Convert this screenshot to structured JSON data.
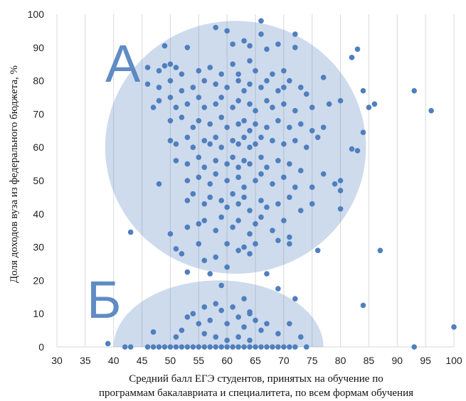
{
  "chart_data": {
    "type": "scatter",
    "title": "",
    "xlabel_lines": [
      "Средний балл ЕГЭ студентов, принятых на обучение по",
      "программам бакалавриата и специалитета, по всем формам обучения"
    ],
    "ylabel": "Доля доходов вуза из федерального бюджета, %",
    "xlim": [
      30,
      100
    ],
    "ylim": [
      0,
      100
    ],
    "x_ticks": [
      30,
      35,
      40,
      45,
      50,
      55,
      60,
      65,
      70,
      75,
      80,
      85,
      90,
      95,
      100
    ],
    "y_ticks": [
      0,
      10,
      20,
      30,
      40,
      50,
      60,
      70,
      80,
      90,
      100
    ],
    "grid": "vertical",
    "series_color": "#4f7fbe",
    "clusters": [
      {
        "label": "А",
        "center": [
          61.5,
          60
        ],
        "radius": [
          23,
          38
        ]
      },
      {
        "label": "Б",
        "center": [
          58.5,
          0
        ],
        "radius": [
          18.5,
          20
        ]
      }
    ],
    "points": [
      [
        49,
        90.5
      ],
      [
        53,
        90
      ],
      [
        58,
        96
      ],
      [
        60,
        95
      ],
      [
        61,
        91
      ],
      [
        63,
        92
      ],
      [
        64,
        90.5
      ],
      [
        66,
        98
      ],
      [
        66,
        94
      ],
      [
        67,
        89.5
      ],
      [
        69,
        91
      ],
      [
        72,
        94
      ],
      [
        72,
        90
      ],
      [
        82,
        87
      ],
      [
        83,
        89.5
      ],
      [
        46,
        84
      ],
      [
        48,
        83
      ],
      [
        49,
        84.5
      ],
      [
        50,
        85
      ],
      [
        51,
        84
      ],
      [
        52,
        82
      ],
      [
        55,
        83
      ],
      [
        57,
        84
      ],
      [
        59,
        82
      ],
      [
        61,
        85
      ],
      [
        62,
        82
      ],
      [
        64,
        86
      ],
      [
        65,
        83
      ],
      [
        68,
        82
      ],
      [
        70,
        83
      ],
      [
        77,
        81
      ],
      [
        46,
        79
      ],
      [
        48,
        78
      ],
      [
        50,
        80
      ],
      [
        52,
        77
      ],
      [
        54,
        78
      ],
      [
        56,
        80
      ],
      [
        58,
        79
      ],
      [
        60,
        78
      ],
      [
        62,
        80
      ],
      [
        63,
        77
      ],
      [
        64,
        79
      ],
      [
        66,
        78
      ],
      [
        67,
        80
      ],
      [
        69,
        77
      ],
      [
        70,
        78
      ],
      [
        71,
        80
      ],
      [
        73,
        78
      ],
      [
        74,
        76
      ],
      [
        84,
        77
      ],
      [
        93,
        77
      ],
      [
        47,
        72
      ],
      [
        48,
        74
      ],
      [
        50,
        75
      ],
      [
        51,
        72
      ],
      [
        53,
        73
      ],
      [
        55,
        75
      ],
      [
        56,
        72
      ],
      [
        58,
        73
      ],
      [
        59,
        75
      ],
      [
        61,
        72
      ],
      [
        62,
        74
      ],
      [
        64,
        73
      ],
      [
        65,
        71
      ],
      [
        67,
        74
      ],
      [
        68,
        72
      ],
      [
        70,
        73
      ],
      [
        72,
        71
      ],
      [
        75,
        72
      ],
      [
        78,
        73
      ],
      [
        80,
        74
      ],
      [
        85,
        72
      ],
      [
        86,
        73
      ],
      [
        96,
        71
      ],
      [
        50,
        68
      ],
      [
        52,
        69
      ],
      [
        54,
        66
      ],
      [
        55,
        68
      ],
      [
        57,
        67
      ],
      [
        59,
        69
      ],
      [
        60,
        66
      ],
      [
        62,
        67
      ],
      [
        63,
        68
      ],
      [
        64,
        65
      ],
      [
        65,
        67
      ],
      [
        67,
        66
      ],
      [
        69,
        68
      ],
      [
        71,
        66
      ],
      [
        73,
        67
      ],
      [
        75,
        65
      ],
      [
        77,
        66
      ],
      [
        84,
        64.5
      ],
      [
        50,
        62
      ],
      [
        51,
        61
      ],
      [
        53,
        63
      ],
      [
        54,
        60
      ],
      [
        56,
        62
      ],
      [
        57,
        61
      ],
      [
        58,
        63
      ],
      [
        59,
        60
      ],
      [
        61,
        62
      ],
      [
        62,
        61
      ],
      [
        63,
        63
      ],
      [
        64,
        60
      ],
      [
        65,
        61
      ],
      [
        66,
        63
      ],
      [
        68,
        62
      ],
      [
        70,
        61
      ],
      [
        72,
        62
      ],
      [
        74,
        60
      ],
      [
        76,
        63
      ],
      [
        82,
        59.5
      ],
      [
        83,
        59
      ],
      [
        51,
        56
      ],
      [
        53,
        55
      ],
      [
        55,
        57
      ],
      [
        56,
        54
      ],
      [
        58,
        56
      ],
      [
        60,
        55
      ],
      [
        61,
        57
      ],
      [
        62,
        54
      ],
      [
        63,
        56
      ],
      [
        64,
        55
      ],
      [
        66,
        57
      ],
      [
        67,
        54
      ],
      [
        69,
        56
      ],
      [
        71,
        55
      ],
      [
        73,
        53
      ],
      [
        48,
        49
      ],
      [
        53,
        50
      ],
      [
        55,
        51
      ],
      [
        57,
        49
      ],
      [
        58,
        52
      ],
      [
        60,
        50
      ],
      [
        62,
        51
      ],
      [
        63,
        48
      ],
      [
        65,
        50
      ],
      [
        66,
        52
      ],
      [
        68,
        49
      ],
      [
        70,
        51
      ],
      [
        72,
        48
      ],
      [
        75,
        48
      ],
      [
        77,
        52
      ],
      [
        79,
        49
      ],
      [
        80,
        50
      ],
      [
        80,
        47
      ],
      [
        53,
        44
      ],
      [
        54,
        46
      ],
      [
        56,
        43
      ],
      [
        57,
        45
      ],
      [
        59,
        44
      ],
      [
        60,
        42
      ],
      [
        61,
        46
      ],
      [
        62,
        43
      ],
      [
        63,
        45
      ],
      [
        64,
        41
      ],
      [
        66,
        44
      ],
      [
        67,
        42
      ],
      [
        69,
        43
      ],
      [
        71,
        45
      ],
      [
        73,
        41
      ],
      [
        75,
        43
      ],
      [
        80,
        41.5
      ],
      [
        50,
        34
      ],
      [
        53,
        36
      ],
      [
        55,
        37
      ],
      [
        56,
        38
      ],
      [
        58,
        35
      ],
      [
        59,
        39
      ],
      [
        61,
        36
      ],
      [
        62,
        38
      ],
      [
        64,
        34
      ],
      [
        65,
        37
      ],
      [
        66,
        39
      ],
      [
        68,
        35
      ],
      [
        70,
        38
      ],
      [
        71,
        33
      ],
      [
        43,
        34.5
      ],
      [
        51,
        29.5
      ],
      [
        52,
        28
      ],
      [
        55,
        31
      ],
      [
        56,
        26
      ],
      [
        58,
        27
      ],
      [
        60,
        31
      ],
      [
        62,
        29
      ],
      [
        63,
        30
      ],
      [
        64,
        28
      ],
      [
        65,
        31
      ],
      [
        69,
        32
      ],
      [
        71,
        31
      ],
      [
        76,
        29
      ],
      [
        87,
        29
      ],
      [
        53,
        22.5
      ],
      [
        57,
        22
      ],
      [
        60,
        24
      ],
      [
        67,
        22
      ],
      [
        69,
        17.5
      ],
      [
        72,
        14.5
      ],
      [
        84,
        12.5
      ],
      [
        53,
        9
      ],
      [
        54,
        10
      ],
      [
        55,
        7
      ],
      [
        56,
        12
      ],
      [
        57,
        8
      ],
      [
        58,
        13
      ],
      [
        59,
        11
      ],
      [
        60,
        7
      ],
      [
        61,
        12
      ],
      [
        62,
        9
      ],
      [
        63,
        6
      ],
      [
        64,
        10
      ],
      [
        65,
        8
      ],
      [
        66,
        5
      ],
      [
        67,
        7
      ],
      [
        69,
        4
      ],
      [
        71,
        7
      ],
      [
        73,
        3
      ],
      [
        52,
        5
      ],
      [
        51,
        3
      ],
      [
        47,
        4.5
      ],
      [
        56,
        4
      ],
      [
        58,
        3
      ],
      [
        60,
        2
      ],
      [
        62,
        3
      ],
      [
        64,
        2
      ],
      [
        59,
        18.5
      ],
      [
        63,
        14.5
      ],
      [
        64,
        10.5
      ],
      [
        39,
        1
      ],
      [
        42,
        0
      ],
      [
        43,
        0
      ],
      [
        46,
        0
      ],
      [
        47,
        0
      ],
      [
        48,
        0
      ],
      [
        49,
        0
      ],
      [
        50,
        0
      ],
      [
        51,
        0
      ],
      [
        52,
        0
      ],
      [
        53,
        0
      ],
      [
        54,
        0
      ],
      [
        55,
        0
      ],
      [
        56,
        0
      ],
      [
        57,
        0
      ],
      [
        58,
        0
      ],
      [
        59,
        0
      ],
      [
        60,
        0
      ],
      [
        61,
        0
      ],
      [
        62,
        0
      ],
      [
        63,
        0
      ],
      [
        64,
        0
      ],
      [
        65,
        0
      ],
      [
        66,
        0
      ],
      [
        67,
        0
      ],
      [
        68,
        0
      ],
      [
        69,
        0
      ],
      [
        70,
        0
      ],
      [
        71,
        0
      ],
      [
        72,
        0
      ],
      [
        74,
        0
      ],
      [
        93,
        0
      ],
      [
        100,
        6
      ]
    ]
  }
}
